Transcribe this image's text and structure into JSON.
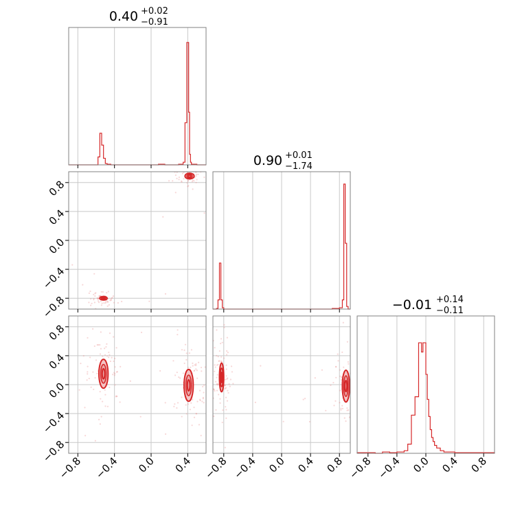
{
  "chart_data": {
    "type": "corner",
    "color": "#d62728",
    "ticks": [
      "−0.8",
      "−0.4",
      "0.0",
      "0.4",
      "0.8"
    ],
    "tick_values": [
      -0.8,
      -0.4,
      0.0,
      0.4,
      0.8
    ],
    "params": [
      {
        "range": [
          -0.9,
          0.6
        ],
        "title": {
          "median": "0.40",
          "plus": "+0.02",
          "minus": "−0.91"
        },
        "bins": [
          -0.9,
          -0.85,
          -0.8,
          -0.75,
          -0.7,
          -0.65,
          -0.6,
          -0.58,
          -0.56,
          -0.54,
          -0.52,
          -0.5,
          -0.48,
          -0.46,
          -0.44,
          -0.4,
          -0.3,
          -0.2,
          -0.1,
          0.0,
          0.05,
          0.08,
          0.15,
          0.2,
          0.25,
          0.3,
          0.35,
          0.37,
          0.39,
          0.4,
          0.41,
          0.42,
          0.43,
          0.44,
          0.46,
          0.5,
          0.55,
          0.6
        ],
        "counts": [
          0,
          0,
          0,
          0,
          0,
          0,
          0,
          0.06,
          0.24,
          0.15,
          0.05,
          0.01,
          0.005,
          0.005,
          0,
          0,
          0,
          0,
          0,
          0,
          0,
          0.005,
          0,
          0,
          0,
          0.005,
          0.02,
          0.32,
          0.93,
          0.93,
          0.4,
          0.08,
          0.02,
          0.005,
          0.005,
          0,
          0
        ]
      },
      {
        "range": [
          -0.95,
          0.95
        ],
        "title": {
          "median": "0.90",
          "plus": "+0.01",
          "minus": "−1.74"
        },
        "bins": [
          -0.95,
          -0.9,
          -0.88,
          -0.86,
          -0.84,
          -0.82,
          -0.8,
          -0.78,
          -0.76,
          -0.7,
          -0.5,
          -0.3,
          -0.1,
          0.1,
          0.3,
          0.5,
          0.6,
          0.7,
          0.8,
          0.84,
          0.86,
          0.88,
          0.9,
          0.92,
          0.95
        ],
        "counts": [
          0,
          0.005,
          0.07,
          0.35,
          0.07,
          0.01,
          0,
          0,
          0,
          0,
          0,
          0,
          0,
          0,
          0,
          0,
          0,
          0.005,
          0.01,
          0.07,
          0.95,
          0.5,
          0.02,
          0
        ]
      },
      {
        "range": [
          -0.95,
          0.95
        ],
        "title": {
          "median": "−0.01",
          "plus": "+0.14",
          "minus": "−0.11"
        },
        "bins": [
          -0.95,
          -0.8,
          -0.7,
          -0.6,
          -0.5,
          -0.4,
          -0.3,
          -0.25,
          -0.2,
          -0.15,
          -0.1,
          -0.08,
          -0.06,
          -0.04,
          -0.02,
          0.0,
          0.02,
          0.04,
          0.06,
          0.08,
          0.1,
          0.12,
          0.15,
          0.2,
          0.25,
          0.3,
          0.4,
          0.5,
          0.6,
          0.7,
          0.8,
          0.95
        ],
        "counts": [
          0.005,
          0.005,
          0,
          0.01,
          0.005,
          0.01,
          0.02,
          0.07,
          0.29,
          0.43,
          0.84,
          0.84,
          0.77,
          0.84,
          0.84,
          0.6,
          0.41,
          0.28,
          0.18,
          0.12,
          0.09,
          0.06,
          0.04,
          0.02,
          0.01,
          0.01,
          0.005,
          0.005,
          0.005,
          0.005,
          0.005
        ]
      }
    ],
    "pairs": [
      {
        "x": 0,
        "y": 1,
        "modes": [
          {
            "cx": 0.42,
            "cy": 0.89,
            "rx": 0.05,
            "ry": 0.04,
            "spread": 0.02
          },
          {
            "cx": -0.52,
            "cy": -0.8,
            "rx": 0.04,
            "ry": 0.025,
            "spread": 0.02
          }
        ]
      },
      {
        "x": 0,
        "y": 2,
        "modes": [
          {
            "cx": -0.52,
            "cy": 0.15,
            "rx": 0.05,
            "ry": 0.2,
            "spread": 0.04
          },
          {
            "cx": 0.41,
            "cy": -0.01,
            "rx": 0.05,
            "ry": 0.22,
            "spread": 0.04
          }
        ]
      },
      {
        "x": 1,
        "y": 2,
        "modes": [
          {
            "cx": -0.83,
            "cy": 0.1,
            "rx": 0.03,
            "ry": 0.2,
            "spread": 0.03
          },
          {
            "cx": 0.89,
            "cy": -0.02,
            "rx": 0.05,
            "ry": 0.22,
            "spread": 0.03
          }
        ]
      }
    ]
  }
}
